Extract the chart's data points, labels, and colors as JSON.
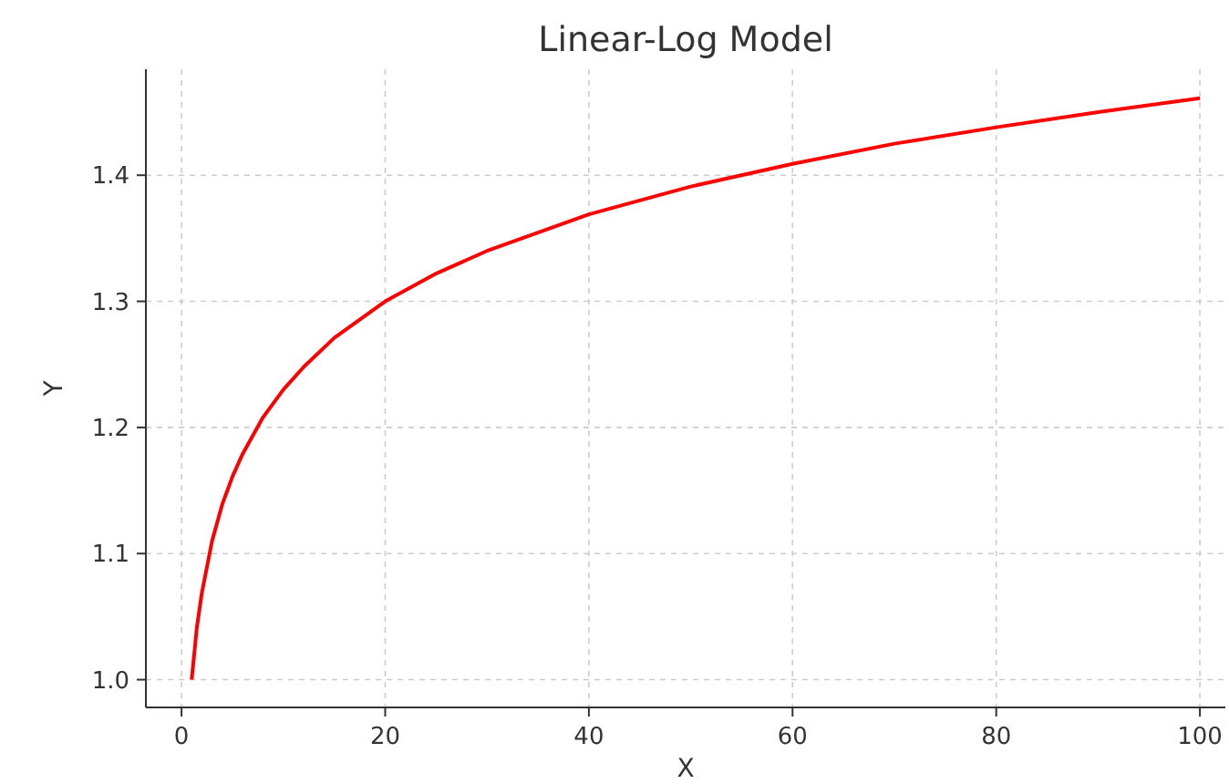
{
  "chart_data": {
    "type": "line",
    "title": "Linear-Log Model",
    "xlabel": "X",
    "ylabel": "Y",
    "x": [
      1,
      1.5,
      2,
      3,
      4,
      5,
      6,
      8,
      10,
      12,
      15,
      20,
      25,
      30,
      40,
      50,
      60,
      70,
      80,
      90,
      100
    ],
    "series": [
      {
        "color": "#ff0000",
        "values": [
          1.0,
          1.041,
          1.069,
          1.11,
          1.139,
          1.161,
          1.179,
          1.208,
          1.23,
          1.248,
          1.271,
          1.3,
          1.322,
          1.34,
          1.369,
          1.391,
          1.409,
          1.425,
          1.438,
          1.45,
          1.461
        ]
      }
    ],
    "xlim": [
      -3.5,
      102.5
    ],
    "xticks": [
      0,
      20,
      40,
      60,
      80,
      100
    ],
    "ylim": [
      0.978,
      1.484
    ],
    "yticks": [
      {
        "value": 1.0,
        "label": "1.0"
      },
      {
        "value": 1.1,
        "label": "1.1"
      },
      {
        "value": 1.2,
        "label": "1.2"
      },
      {
        "value": 1.3,
        "label": "1.3"
      },
      {
        "value": 1.4,
        "label": "1.4"
      }
    ],
    "grid": true,
    "line_style": "solid",
    "marker": "none"
  }
}
